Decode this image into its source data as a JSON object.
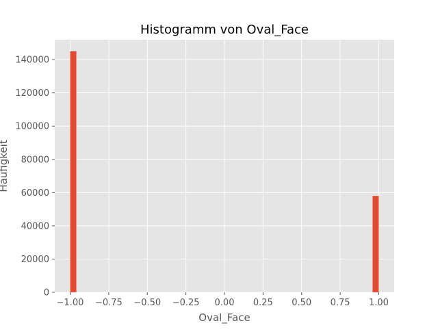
{
  "chart_data": {
    "type": "bar",
    "title": "Histogramm von Oval_Face",
    "xlabel": "Oval_Face",
    "ylabel": "Häufigkeit",
    "xlim": [
      -1.1,
      1.1
    ],
    "ylim": [
      0,
      152000
    ],
    "xticks": [
      -1.0,
      -0.75,
      -0.5,
      -0.25,
      0.0,
      0.25,
      0.5,
      0.75,
      1.0
    ],
    "xtick_labels": [
      "−1.00",
      "−0.75",
      "−0.50",
      "−0.25",
      "0.00",
      "0.25",
      "0.50",
      "0.75",
      "1.00"
    ],
    "yticks": [
      0,
      20000,
      40000,
      60000,
      80000,
      100000,
      120000,
      140000
    ],
    "ytick_labels": [
      "0",
      "20000",
      "40000",
      "60000",
      "80000",
      "100000",
      "120000",
      "140000"
    ],
    "bins": [
      {
        "x0": -1.0,
        "x1": -0.96,
        "value": 145000
      },
      {
        "x0": 0.96,
        "x1": 1.0,
        "value": 58000
      }
    ],
    "grid": true,
    "bar_color": "#E24A33",
    "background_color": "#E5E5E5",
    "grid_color": "#FFFFFF"
  }
}
